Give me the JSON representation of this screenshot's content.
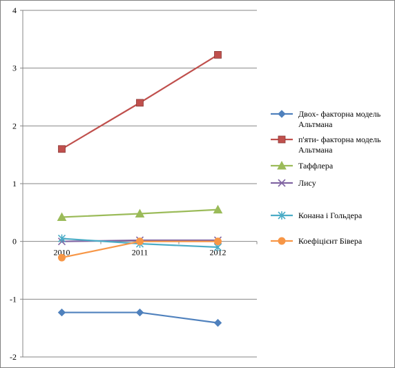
{
  "chart_data": {
    "type": "line",
    "categories": [
      "2010",
      "2011",
      "2012"
    ],
    "ylim": [
      -2,
      4
    ],
    "yticks": [
      "-2",
      "-1",
      "0",
      "1",
      "2",
      "3",
      "4"
    ],
    "series": [
      {
        "name": "Двох- факторна модель Альтмана",
        "legend_lines": [
          "Двох- факторна модель",
          "Альтмана"
        ],
        "values": [
          -1.23,
          -1.23,
          -1.41
        ],
        "color": "#4f81bd",
        "marker": "diamond"
      },
      {
        "name": "п'яти- факторна модель Альтмана",
        "legend_lines": [
          "п'яти- факторна модель",
          "Альтмана"
        ],
        "values": [
          1.6,
          2.4,
          3.23
        ],
        "color": "#c0504d",
        "marker": "square"
      },
      {
        "name": "Таффлера",
        "legend_lines": [
          "Таффлера"
        ],
        "values": [
          0.42,
          0.48,
          0.55
        ],
        "color": "#9bbb59",
        "marker": "triangle"
      },
      {
        "name": "Лису",
        "legend_lines": [
          "Лису"
        ],
        "values": [
          0.0,
          0.02,
          0.02
        ],
        "color": "#8064a2",
        "marker": "x"
      },
      {
        "name": "Конана і Гольдера",
        "legend_lines": [
          "Конана і Гольдера"
        ],
        "values": [
          0.05,
          -0.04,
          -0.1
        ],
        "color": "#4bacc6",
        "marker": "star"
      },
      {
        "name": "Коефіцієнт Бівера",
        "legend_lines": [
          "Коефіцієнт Бівера"
        ],
        "values": [
          -0.28,
          0.0,
          0.0
        ],
        "color": "#f79646",
        "marker": "circle"
      }
    ],
    "grid": true,
    "legend_position": "right"
  }
}
